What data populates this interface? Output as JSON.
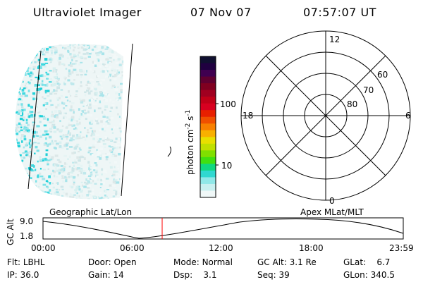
{
  "header": {
    "instrument": "Ultraviolet Imager",
    "date": "07 Nov 07",
    "time": "07:57:07 UT"
  },
  "colorbar": {
    "unit_label": "photon cm",
    "unit_sup1": "-2",
    "unit_mid": "s",
    "unit_sup2": "-1",
    "ticks": [
      "100",
      "10"
    ],
    "colors": [
      "#101030",
      "#200040",
      "#400050",
      "#600030",
      "#800020",
      "#a00020",
      "#c00018",
      "#d80020",
      "#e82000",
      "#f05000",
      "#f88000",
      "#f8b000",
      "#e8e000",
      "#c0e000",
      "#80e000",
      "#40e010",
      "#10d880",
      "#30d8d0",
      "#90e8e8",
      "#c8f0f0",
      "#f0f8f8"
    ]
  },
  "polar": {
    "mlt_labels": {
      "top": "12",
      "bottom": "0",
      "left": "18",
      "right": "6"
    },
    "lat_labels": [
      "60",
      "70",
      "80"
    ]
  },
  "altitude_plot": {
    "left_title": "Geographic Lat/Lon",
    "right_title": "Apex MLat/MLT",
    "ylabel": "GC Alt",
    "ymax": "9.0",
    "ymin": "1.8",
    "xticks": [
      "00:00",
      "06:00",
      "12:00",
      "18:00",
      "23:59"
    ],
    "current_marker_color": "#ff0000"
  },
  "info": {
    "row1": [
      {
        "label": "Flt:",
        "value": "LBHL"
      },
      {
        "label": "Door:",
        "value": "Open"
      },
      {
        "label": "Mode:",
        "value": "Normal"
      },
      {
        "label": "GC Alt:",
        "value": "3.1 Re"
      },
      {
        "label": "GLat:",
        "value": "6.7"
      }
    ],
    "row2": [
      {
        "label": "IP:",
        "value": "36.0"
      },
      {
        "label": "Gain:",
        "value": "14"
      },
      {
        "label": "Dsp:",
        "value": "3.1"
      },
      {
        "label": "Seq:",
        "value": "39"
      },
      {
        "label": "GLon:",
        "value": "340.5"
      }
    ]
  }
}
